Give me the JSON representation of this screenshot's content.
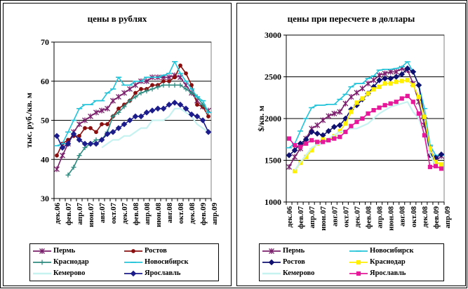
{
  "colors": {
    "Пермь": "#7a1f6b",
    "Ростов": "#8b0f0f",
    "Краснодар": "#2e8b80",
    "Новосибирск": "#22c4d9",
    "Кемерово": "#c6f2f0",
    "Ярославль": "#1c1c8c",
    "Ростов_right": "#0f1070",
    "Краснодар_right": "#ffef00",
    "Ярославль_right": "#e6199a"
  },
  "chart_data": [
    {
      "type": "line",
      "title": "цены в рублях",
      "ylabel": "тыс. руб./кв. м",
      "ylim": [
        30,
        70
      ],
      "yticks": [
        30,
        40,
        50,
        60,
        70
      ],
      "xticklabels": [
        "дек.06",
        "фев.07",
        "апр.07",
        "июн.07",
        "авг.07",
        "окт.07",
        "дек.07",
        "фев.08",
        "апр.08",
        "июн.08",
        "авг.08",
        "окт.08",
        "дек.08",
        "фев.09",
        "апр.09"
      ],
      "legend": [
        "Пермь",
        "Ростов",
        "Краснодар",
        "Новосибирск",
        "Кемерово",
        "Ярославль"
      ],
      "legend_position": "bottom",
      "grid": true,
      "series": [
        {
          "name": "Пермь",
          "marker": "star",
          "values": [
            37.5,
            41,
            44,
            47,
            49,
            50,
            51,
            52,
            52.5,
            53,
            55,
            56,
            57,
            58,
            59,
            60,
            60,
            61,
            61,
            61,
            61,
            61.5,
            61,
            59,
            57,
            55,
            53.5,
            52.5
          ]
        },
        {
          "name": "Ростов",
          "marker": "circle",
          "values": [
            41,
            44,
            45,
            46,
            46,
            48,
            48,
            47,
            49,
            49,
            51,
            53,
            54,
            55,
            57,
            58,
            58,
            59,
            59,
            60,
            60,
            61,
            64,
            62,
            59,
            54,
            53.5,
            51
          ]
        },
        {
          "name": "Краснодар",
          "marker": "plus",
          "values": [
            null,
            null,
            36,
            38,
            41,
            43,
            44,
            45,
            45,
            47,
            51,
            52,
            53.5,
            55,
            56,
            57,
            57.5,
            58,
            58.5,
            59,
            59,
            59,
            59,
            58,
            57,
            56,
            54,
            52
          ]
        },
        {
          "name": "Новосибирск",
          "marker": "dash",
          "values": [
            43.5,
            44,
            47,
            50,
            53,
            54,
            54,
            55,
            55,
            57,
            58,
            61,
            59,
            59,
            60,
            60,
            61,
            61,
            61,
            61.5,
            62,
            65,
            62,
            60,
            58,
            56,
            55,
            52
          ]
        },
        {
          "name": "Кемерово",
          "marker": "none",
          "values": [
            null,
            null,
            null,
            null,
            null,
            null,
            null,
            null,
            43,
            44,
            45,
            45,
            46,
            46,
            47,
            48,
            48,
            50,
            50,
            50,
            51,
            53,
            53,
            52,
            51,
            49,
            48,
            47
          ]
        },
        {
          "name": "Ярославль",
          "marker": "diamond",
          "values": [
            46,
            43,
            44,
            46.5,
            45,
            44,
            44,
            44,
            45,
            46.5,
            47,
            48,
            49,
            50,
            51,
            51,
            52,
            52.5,
            53,
            53,
            54,
            54.5,
            54,
            53,
            51.5,
            51,
            50,
            47
          ]
        }
      ]
    },
    {
      "type": "line",
      "title": "цены при пересчете в доллары",
      "ylabel": "$/кв. м",
      "ylim": [
        1000,
        3000
      ],
      "yticks": [
        1000,
        1500,
        2000,
        2500,
        3000
      ],
      "xticklabels": [
        "дек.06",
        "фев.07",
        "апр.07",
        "июн.07",
        "авг.07",
        "окт.07",
        "дек.07",
        "фев.08",
        "апр.08",
        "июн.08",
        "авг.08",
        "окт.08",
        "дек.08",
        "фев.09",
        "апр.09"
      ],
      "legend": [
        "Пермь",
        "Новосибирск",
        "Ростов",
        "Краснодар",
        "Кемерово",
        "Ярославль"
      ],
      "legend_position": "bottom",
      "grid": true,
      "series": [
        {
          "name": "Пермь",
          "marker": "star",
          "values": [
            1420,
            1540,
            1640,
            1760,
            1880,
            1920,
            1980,
            2030,
            2060,
            2080,
            2180,
            2260,
            2310,
            2360,
            2420,
            2460,
            2520,
            2540,
            2560,
            2560,
            2600,
            2580,
            2420,
            2200,
            1920,
            1640,
            1490,
            1550
          ]
        },
        {
          "name": "Новосибирск",
          "marker": "dash",
          "values": [
            1650,
            1700,
            1850,
            2000,
            2130,
            2160,
            2160,
            2170,
            2170,
            2230,
            2290,
            2380,
            2420,
            2420,
            2480,
            2510,
            2580,
            2590,
            2590,
            2600,
            2620,
            2680,
            2560,
            2400,
            2120,
            1680,
            1560,
            1560
          ]
        },
        {
          "name": "Ростов",
          "marker": "diamond",
          "values": [
            1560,
            1620,
            1700,
            1750,
            1840,
            1820,
            1800,
            1850,
            1900,
            1920,
            2000,
            2110,
            2160,
            2230,
            2300,
            2380,
            2460,
            2480,
            2480,
            2500,
            2530,
            2600,
            2560,
            2400,
            2010,
            1560,
            1530,
            1570
          ]
        },
        {
          "name": "Краснодар",
          "marker": "square",
          "values": [
            null,
            1370,
            1470,
            1540,
            1620,
            1700,
            1750,
            1740,
            1790,
            1850,
            1940,
            2080,
            2190,
            2240,
            2300,
            2350,
            2380,
            2420,
            2420,
            2440,
            2450,
            2460,
            2400,
            2260,
            2020,
            1640,
            1480,
            1450
          ]
        },
        {
          "name": "Кемерово",
          "marker": "none",
          "values": [
            null,
            1380,
            1480,
            1560,
            1650,
            1690,
            1700,
            1760,
            1800,
            1840,
            1860,
            1880,
            1880,
            1910,
            1940,
            2000,
            2060,
            2100,
            2140,
            2160,
            2180,
            2200,
            2080,
            2000,
            1800,
            1570,
            1430,
            1400
          ]
        },
        {
          "name": "Ярославль",
          "marker": "square",
          "values": [
            1760,
            1680,
            1660,
            1700,
            1740,
            1720,
            1720,
            1740,
            1760,
            1780,
            1840,
            1910,
            1960,
            2000,
            2060,
            2100,
            2130,
            2160,
            2180,
            2200,
            2240,
            2270,
            2200,
            2060,
            1800,
            1420,
            1430,
            1400
          ]
        }
      ]
    }
  ],
  "legend_left": {
    "items": [
      {
        "label": "Пермь",
        "series": "Пермь"
      },
      {
        "label": "Ростов",
        "series": "Ростов"
      },
      {
        "label": "Краснодар",
        "series": "Краснодар"
      },
      {
        "label": "Новосибирск",
        "series": "Новосибирск"
      },
      {
        "label": "Кемерово",
        "series": "Кемерово"
      },
      {
        "label": "Ярославль",
        "series": "Ярославль"
      }
    ]
  },
  "legend_right": {
    "items": [
      {
        "label": "Пермь",
        "series": "Пермь"
      },
      {
        "label": "Новосибирск",
        "series": "Новосибирск"
      },
      {
        "label": "Ростов",
        "series": "Ростов"
      },
      {
        "label": "Краснодар",
        "series": "Краснодар"
      },
      {
        "label": "Кемерово",
        "series": "Кемерово"
      },
      {
        "label": "Ярославль",
        "series": "Ярославль"
      }
    ]
  }
}
